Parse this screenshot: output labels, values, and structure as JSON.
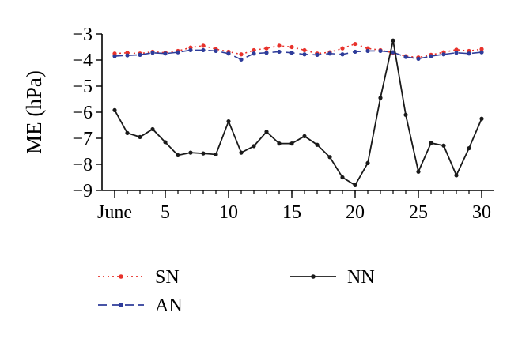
{
  "chart_data": {
    "type": "line",
    "title": "",
    "xlabel": "",
    "ylabel": "ME (hPa)",
    "xlim": [
      1,
      30
    ],
    "ylim": [
      -9,
      -3
    ],
    "grid": false,
    "legend_position": "bottom",
    "x": [
      1,
      2,
      3,
      4,
      5,
      6,
      7,
      8,
      9,
      10,
      11,
      12,
      13,
      14,
      15,
      16,
      17,
      18,
      19,
      20,
      21,
      22,
      23,
      24,
      25,
      26,
      27,
      28,
      29,
      30
    ],
    "x_ticks": [
      1,
      5,
      10,
      15,
      20,
      25,
      30
    ],
    "x_tick_labels": [
      "June",
      "5",
      "10",
      "15",
      "20",
      "25",
      "30"
    ],
    "y_ticks": [
      -9,
      -8,
      -7,
      -6,
      -5,
      -4,
      -3
    ],
    "y_tick_labels": [
      "−9",
      "−8",
      "−7",
      "−6",
      "−5",
      "−4",
      "−3"
    ],
    "series": [
      {
        "name": "SN",
        "color": "#e8322b",
        "style": "dotted",
        "values": [
          -3.75,
          -3.72,
          -3.75,
          -3.68,
          -3.72,
          -3.65,
          -3.52,
          -3.45,
          -3.58,
          -3.68,
          -3.78,
          -3.62,
          -3.55,
          -3.45,
          -3.5,
          -3.62,
          -3.75,
          -3.7,
          -3.55,
          -3.38,
          -3.55,
          -3.62,
          -3.72,
          -3.85,
          -3.9,
          -3.8,
          -3.7,
          -3.6,
          -3.65,
          -3.58
        ]
      },
      {
        "name": "AN",
        "color": "#2e3c9a",
        "style": "dashed",
        "values": [
          -3.85,
          -3.82,
          -3.8,
          -3.72,
          -3.75,
          -3.7,
          -3.62,
          -3.62,
          -3.65,
          -3.75,
          -3.98,
          -3.75,
          -3.72,
          -3.68,
          -3.72,
          -3.78,
          -3.8,
          -3.75,
          -3.78,
          -3.68,
          -3.65,
          -3.65,
          -3.7,
          -3.88,
          -3.95,
          -3.85,
          -3.78,
          -3.72,
          -3.75,
          -3.7
        ]
      },
      {
        "name": "NN",
        "color": "#1a1a1a",
        "style": "solid",
        "values": [
          -5.92,
          -6.8,
          -6.95,
          -6.65,
          -7.15,
          -7.65,
          -7.55,
          -7.58,
          -7.62,
          -6.35,
          -7.55,
          -7.3,
          -6.75,
          -7.2,
          -7.2,
          -6.92,
          -7.25,
          -7.72,
          -8.5,
          -8.8,
          -7.95,
          -5.45,
          -3.25,
          -6.1,
          -8.28,
          -7.18,
          -7.28,
          -8.42,
          -7.38,
          -6.25
        ]
      }
    ]
  }
}
